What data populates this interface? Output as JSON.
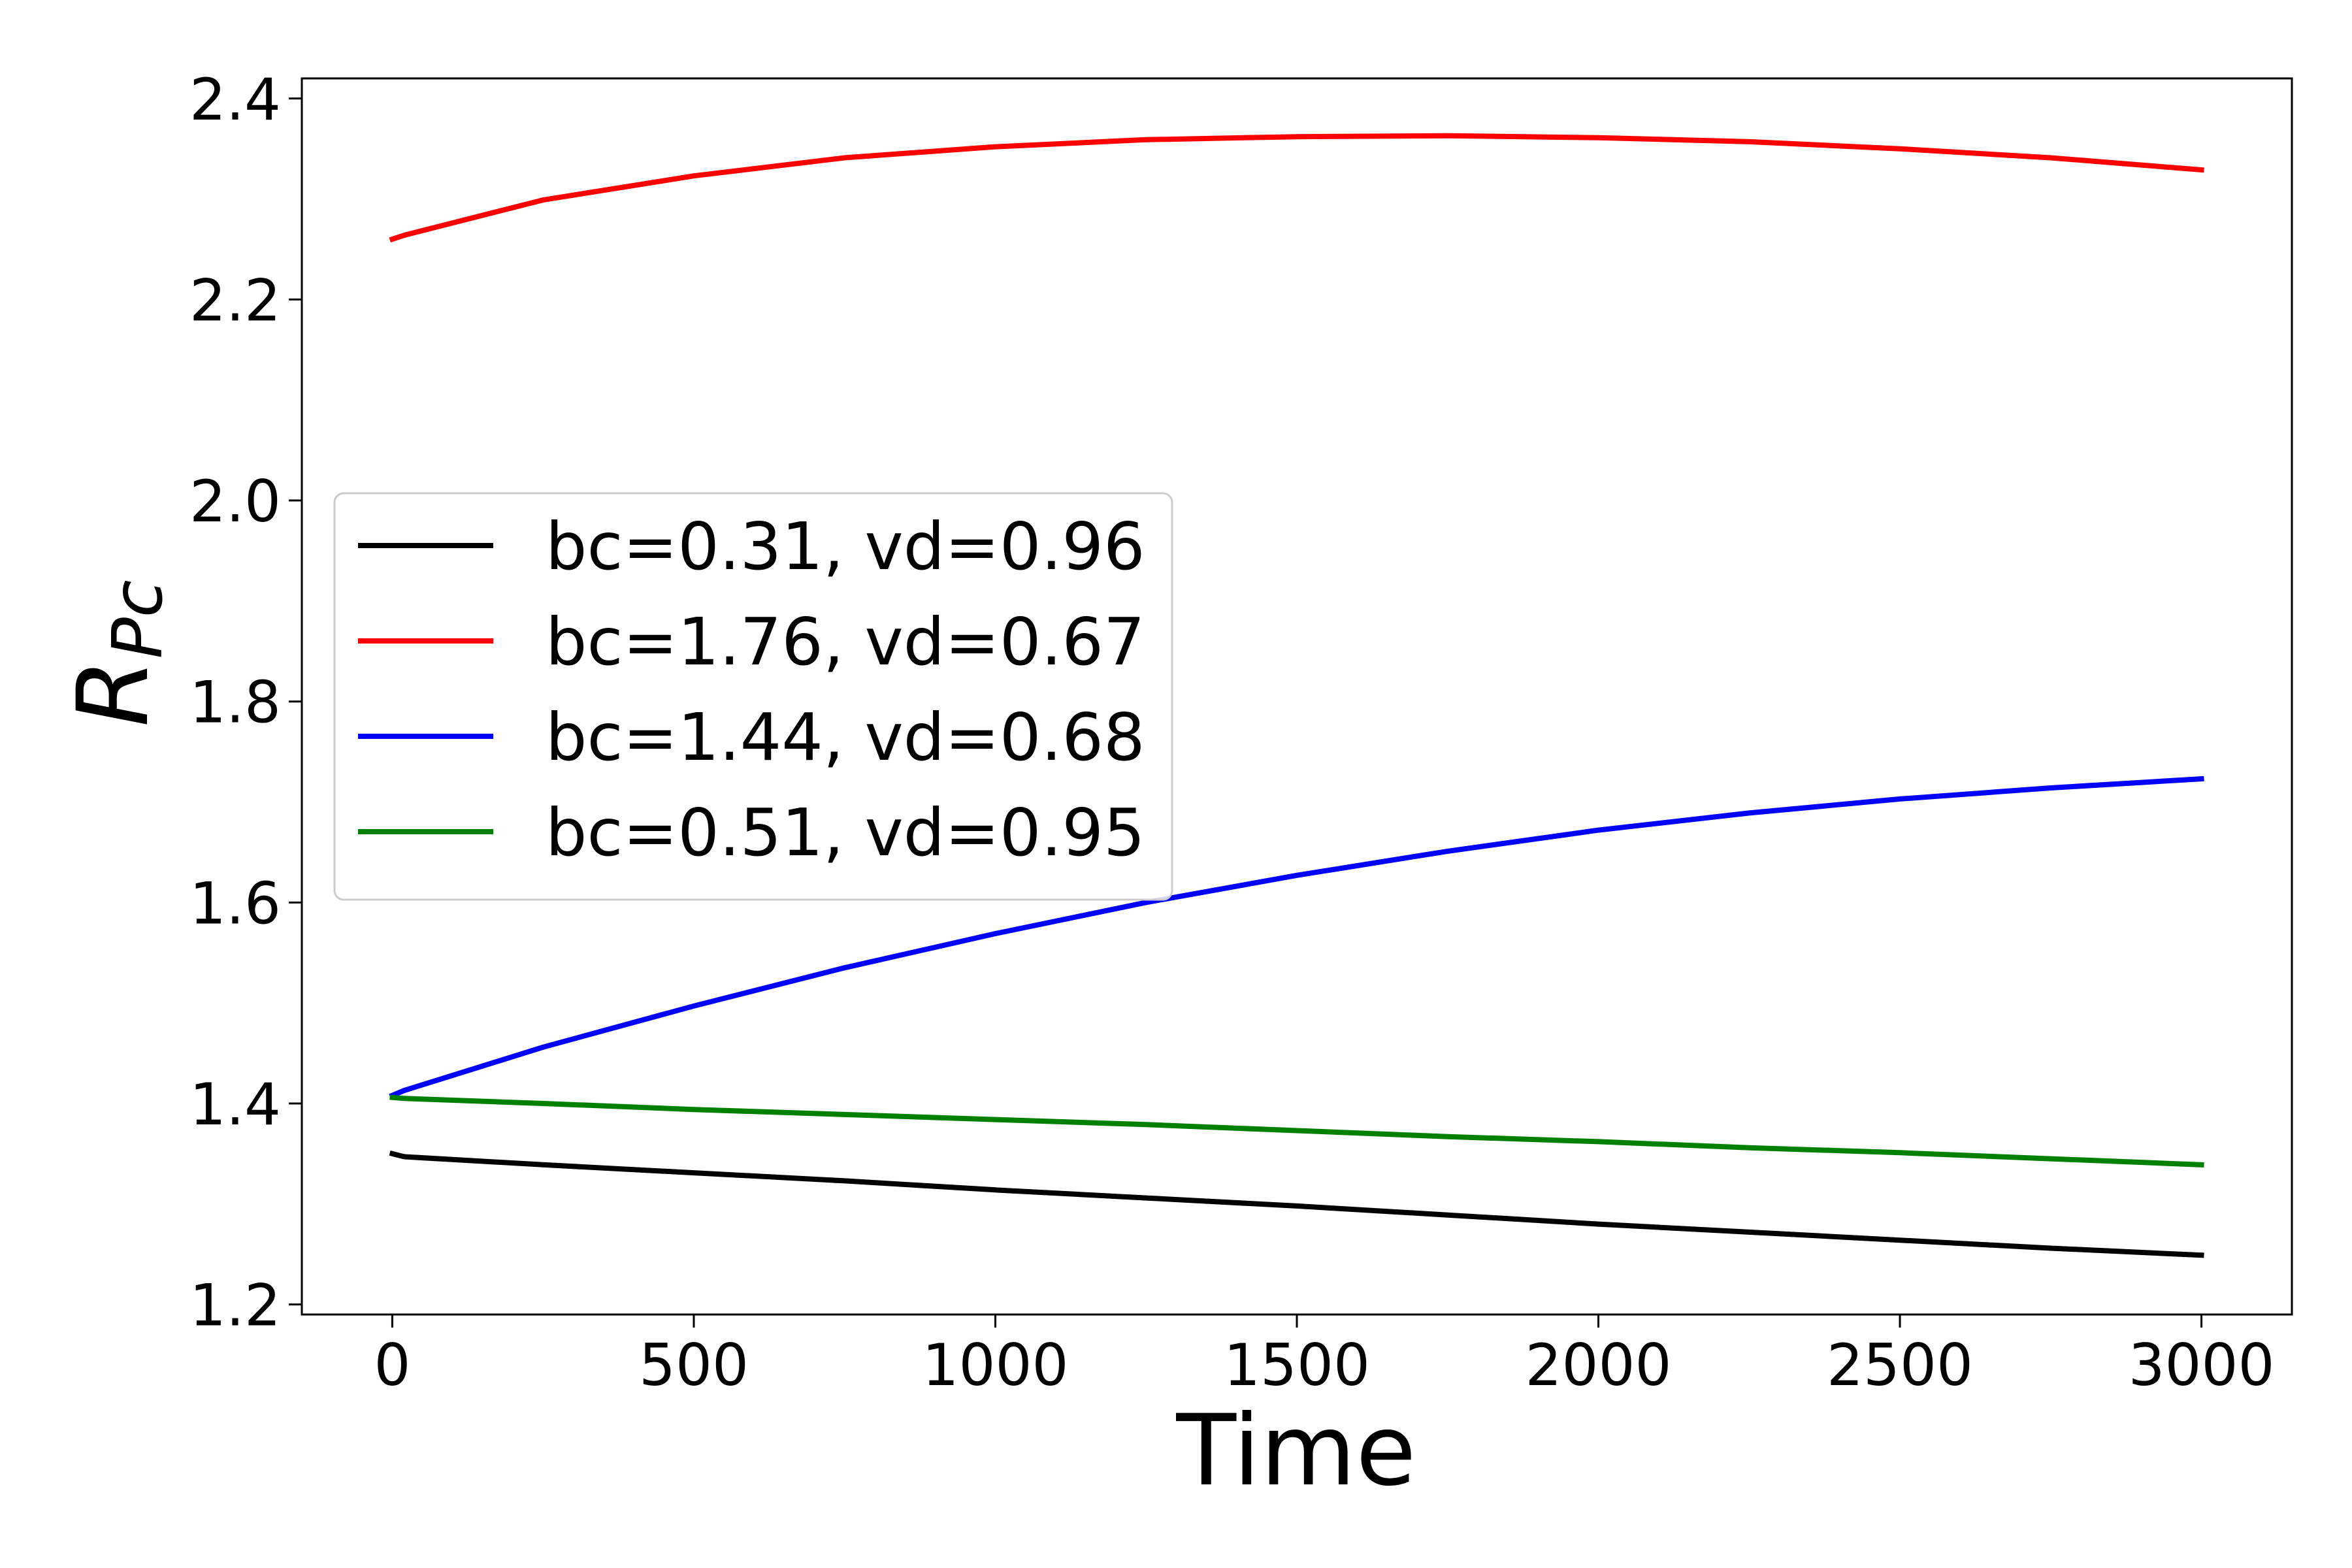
{
  "chart_data": {
    "type": "line",
    "title": "",
    "xlabel": "Time",
    "ylabel": "R",
    "ylabel_subscript": "Pc",
    "xlim": [
      -150,
      3150
    ],
    "ylim": [
      1.19,
      2.42
    ],
    "xticks": [
      0,
      500,
      1000,
      1500,
      2000,
      2500,
      3000
    ],
    "xtick_labels": [
      "0",
      "500",
      "1000",
      "1500",
      "2000",
      "2500",
      "3000"
    ],
    "yticks": [
      1.2,
      1.4,
      1.6,
      1.8,
      2.0,
      2.2,
      2.4
    ],
    "ytick_labels": [
      "1.2",
      "1.4",
      "1.6",
      "1.8",
      "2.0",
      "2.2",
      "2.4"
    ],
    "grid": false,
    "legend_position": "center-left",
    "x": [
      0,
      20,
      250,
      500,
      750,
      1000,
      1250,
      1500,
      1750,
      2000,
      2250,
      2500,
      2750,
      3000
    ],
    "series": [
      {
        "name": "bc=0.31, vd=0.96",
        "color": "#000000",
        "values": [
          1.35,
          1.347,
          1.339,
          1.331,
          1.323,
          1.314,
          1.306,
          1.298,
          1.289,
          1.28,
          1.272,
          1.264,
          1.256,
          1.249
        ]
      },
      {
        "name": "bc=1.76, vd=0.67",
        "color": "#ff0000",
        "values": [
          2.26,
          2.264,
          2.299,
          2.323,
          2.341,
          2.352,
          2.359,
          2.362,
          2.363,
          2.361,
          2.357,
          2.35,
          2.341,
          2.329
        ]
      },
      {
        "name": "bc=1.44, vd=0.68",
        "color": "#0000ff",
        "values": [
          1.408,
          1.413,
          1.456,
          1.497,
          1.535,
          1.569,
          1.6,
          1.627,
          1.651,
          1.672,
          1.689,
          1.703,
          1.714,
          1.723
        ]
      },
      {
        "name": "bc=0.51, vd=0.95",
        "color": "#008000",
        "values": [
          1.406,
          1.405,
          1.4,
          1.394,
          1.389,
          1.384,
          1.379,
          1.373,
          1.367,
          1.362,
          1.356,
          1.351,
          1.345,
          1.339
        ]
      }
    ]
  }
}
